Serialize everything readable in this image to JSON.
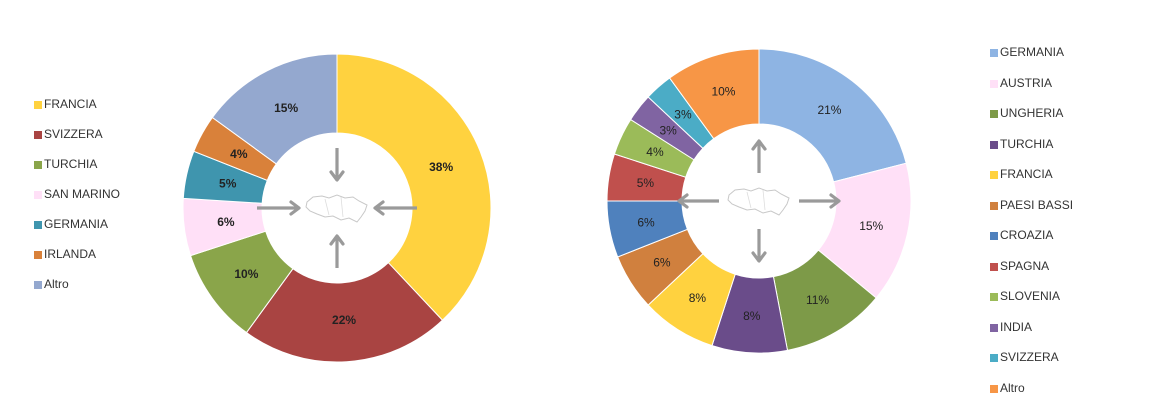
{
  "chart_data": [
    {
      "type": "pie",
      "variant": "donut",
      "legend_position": "left",
      "categories": [
        "FRANCIA",
        "SVIZZERA",
        "TURCHIA",
        "SAN MARINO",
        "GERMANIA",
        "IRLANDA",
        "Altro"
      ],
      "values": [
        38,
        22,
        10,
        6,
        5,
        4,
        15
      ],
      "labels": [
        "38%",
        "22%",
        "10%",
        "6%",
        "5%",
        "4%",
        "15%"
      ],
      "colors": [
        "#FFD23F",
        "#A94442",
        "#8AA54A",
        "#FFE0F7",
        "#3F95AE",
        "#D9813A",
        "#94A8CF"
      ],
      "center_icon": "region-map-icon",
      "arrows": "inward"
    },
    {
      "type": "pie",
      "variant": "donut",
      "legend_position": "right",
      "categories": [
        "GERMANIA",
        "AUSTRIA",
        "UNGHERIA",
        "TURCHIA",
        "FRANCIA",
        "PAESI BASSI",
        "CROAZIA",
        "SPAGNA",
        "SLOVENIA",
        "INDIA",
        "SVIZZERA",
        "Altro"
      ],
      "values": [
        21,
        15,
        11,
        8,
        8,
        6,
        6,
        5,
        4,
        3,
        3,
        10
      ],
      "labels": [
        "21%",
        "15%",
        "11%",
        "8%",
        "8%",
        "6%",
        "6%",
        "5%",
        "4%",
        "3%",
        "3%",
        "10%"
      ],
      "colors": [
        "#8EB4E3",
        "#FFE0F7",
        "#7D9A48",
        "#6A4C8A",
        "#FFD23F",
        "#D0803E",
        "#4F81BD",
        "#C0504D",
        "#9BBB59",
        "#8064A2",
        "#4BACC6",
        "#F79646"
      ],
      "center_icon": "region-map-icon",
      "arrows": "outward"
    }
  ]
}
